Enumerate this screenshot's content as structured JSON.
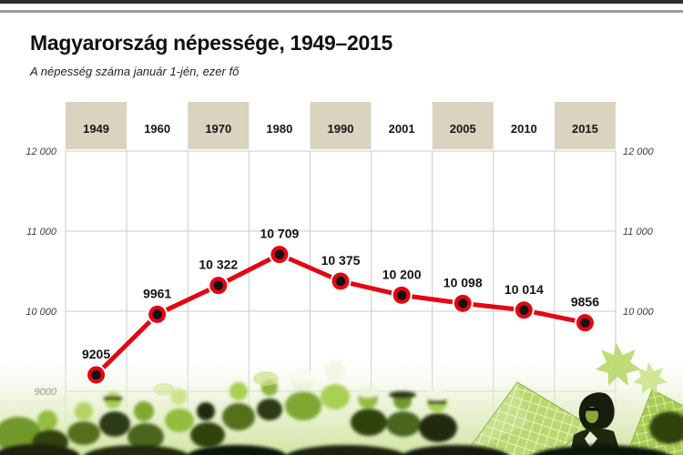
{
  "header": {
    "title": "Magyarország népessége, 1949–2015",
    "subtitle": "A népesség száma január 1-jén, ezer fő"
  },
  "chart_data": {
    "type": "line",
    "title": "Magyarország népessége, 1949–2015",
    "subtitle": "A népesség száma január 1-jén, ezer fő",
    "categories": [
      "1949",
      "1960",
      "1970",
      "1980",
      "1990",
      "2001",
      "2005",
      "2010",
      "2015"
    ],
    "values": [
      9205,
      9961,
      10322,
      10709,
      10375,
      10200,
      10098,
      10014,
      9856
    ],
    "value_labels": [
      "9205",
      "9961",
      "10 322",
      "10 709",
      "10 375",
      "10 200",
      "10 098",
      "10 014",
      "9856"
    ],
    "ylim": [
      9000,
      12000
    ],
    "y_tick_values": [
      12000,
      11000,
      10000,
      9000
    ],
    "y_ticks_left": [
      "12 000",
      "11 000",
      "10 000",
      "9000"
    ],
    "y_ticks_right": [
      "12 000",
      "11 000",
      "10 000"
    ],
    "grid": true,
    "legend": "none",
    "colors": {
      "line": "#e30613",
      "marker_center": "#121212",
      "band": "#d9d3bf",
      "grid": "#cbcbcb"
    }
  }
}
